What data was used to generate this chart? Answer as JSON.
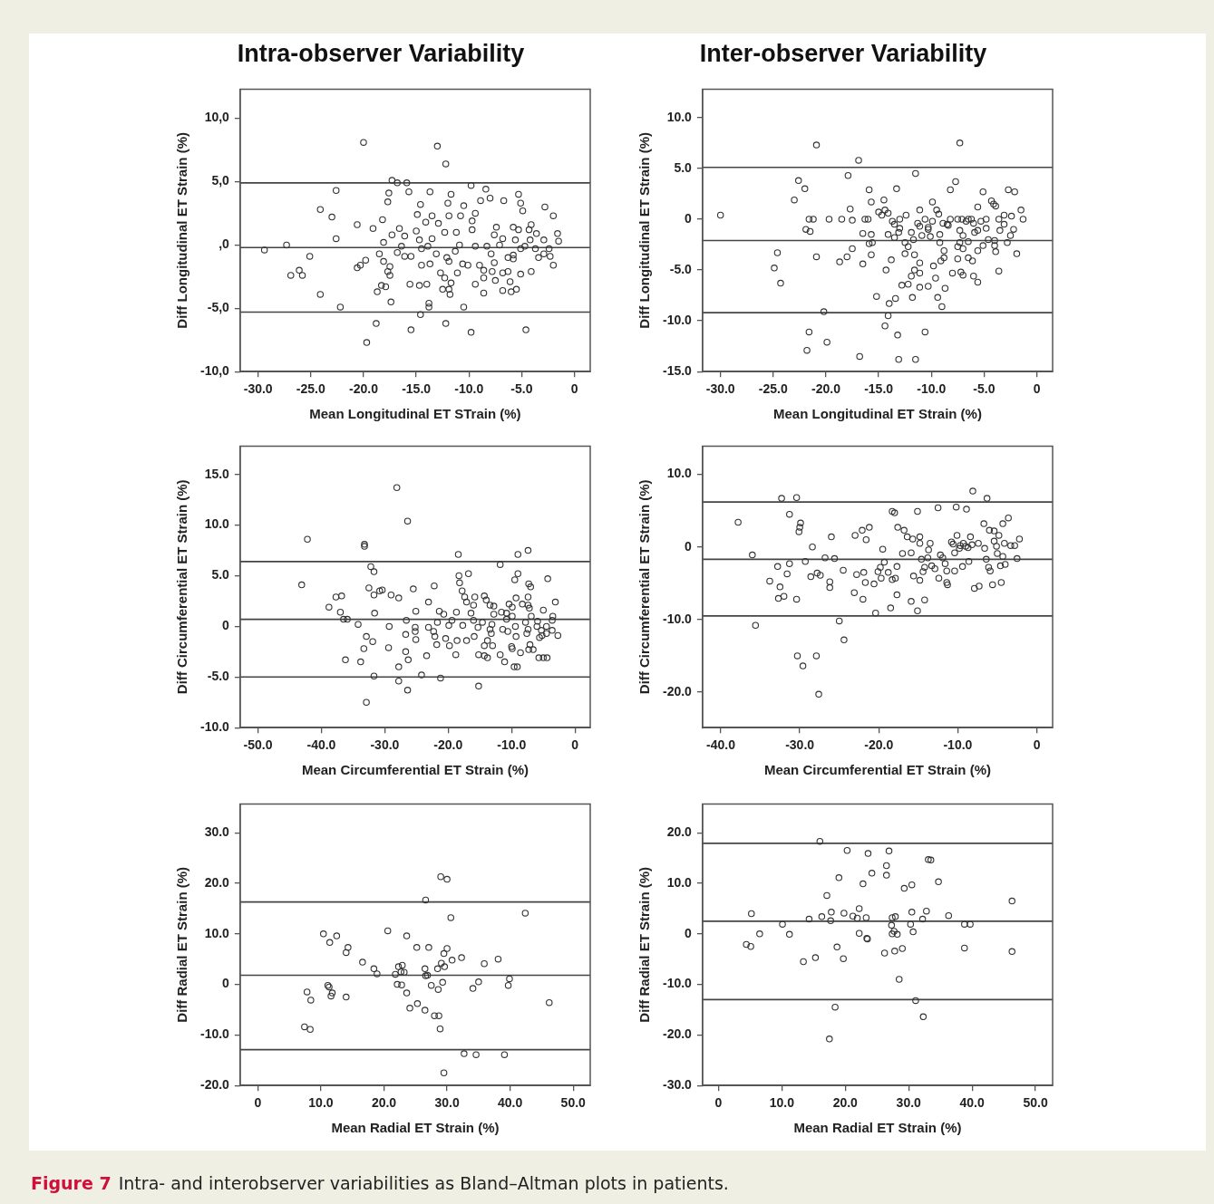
{
  "chart_data": [
    {
      "type": "scatter",
      "title": "Intra-observer Variability",
      "xlabel": "Mean Longitudinal ET STrain (%)",
      "ylabel": "Diff Longitudinal ET Strain (%)",
      "marker": "circle",
      "color": "#333333",
      "legend": false,
      "grid": false,
      "xlim": [
        -31.7,
        1.5
      ],
      "ylim": [
        -10,
        12.3
      ],
      "xticks": [
        {
          "value": -30,
          "label": "-30.0"
        },
        {
          "value": -25,
          "label": "-25.0"
        },
        {
          "value": -20,
          "label": "-20.0"
        },
        {
          "value": -15,
          "label": "-15.0"
        },
        {
          "value": -10,
          "label": "-10.0"
        },
        {
          "value": -5,
          "label": "-5.0"
        },
        {
          "value": 0,
          "label": "0"
        }
      ],
      "yticks": [
        {
          "value": -10,
          "label": "-10,0"
        },
        {
          "value": -5,
          "label": "-5,0"
        },
        {
          "value": 0,
          "label": ",0"
        },
        {
          "value": 5,
          "label": "5,0"
        },
        {
          "value": 10,
          "label": "10,0"
        }
      ],
      "ref_lines": [
        {
          "axis": "y",
          "value": 4.9
        },
        {
          "axis": "y",
          "value": -0.2
        },
        {
          "axis": "y",
          "value": -5.3
        }
      ],
      "annotations": [
        "Figure 7",
        "Intra- and interobserver variabilities as Bland–Altman plots in patients."
      ],
      "x": [
        -20.0,
        -13.0,
        -12.2,
        -17.3,
        -16.8,
        -15.9,
        -9.8,
        -22.6,
        -17.6,
        -15.7,
        -13.7,
        -11.7,
        -8.4,
        -5.3,
        -17.7,
        -14.6,
        -12.0,
        -10.5,
        -8.9,
        -8.0,
        -6.7,
        -5.1,
        -4.9,
        -2.8,
        -24.1,
        -23.0,
        -14.9,
        -13.5,
        -11.9,
        -10.8,
        -9.4,
        -2.0,
        -18.2,
        -14.1,
        -12.9,
        -9.7,
        -20.6,
        -19.1,
        -16.6,
        -7.4,
        -5.8,
        -4.1,
        -15.0,
        -12.3,
        -11.2,
        -9.7,
        -5.3,
        -4.3,
        -1.6,
        -22.6,
        -17.3,
        -16.1,
        -7.6,
        -3.6,
        -18.1,
        -14.7,
        -13.5,
        -6.8,
        -5.6,
        -4.2,
        -2.9,
        -1.5,
        -27.3,
        -10.9,
        -7.1,
        -9.4,
        -4.7,
        -29.4,
        -16.4,
        -13.9,
        -14.5,
        -8.3,
        -5.1,
        -3.7,
        -2.4,
        -19.8,
        -25.1,
        -18.5,
        -16.8,
        -16.1,
        -15.5,
        -13.1,
        -12.1,
        -11.3,
        -7.9,
        -6.3,
        -5.8,
        -2.9,
        -2.3,
        -20.3,
        -20.6,
        -18.1,
        -17.5,
        -14.5,
        -13.7,
        -11.9,
        -10.6,
        -10.1,
        -9.0,
        -7.6,
        -5.8,
        -3.4,
        -2.0,
        -26.9,
        -25.8,
        -26.1,
        -17.7,
        -17.5,
        -12.7,
        -12.3,
        -11.1,
        -8.6,
        -7.8,
        -6.8,
        -6.3,
        -5.1,
        -4.1,
        -18.3,
        -17.9,
        -15.6,
        -14.7,
        -14.0,
        -11.7,
        -9.4,
        -8.6,
        -7.5,
        -6.1,
        -18.7,
        -12.5,
        -11.9,
        -11.8,
        -8.6,
        -6.8,
        -6.0,
        -5.5,
        -24.1,
        -17.4,
        -13.8,
        -13.8,
        -22.2,
        -10.5,
        -14.6,
        -18.8,
        -12.2,
        -15.5,
        -4.6,
        -9.8,
        -19.7
      ],
      "values": [
        8.1,
        7.8,
        6.4,
        5.1,
        4.9,
        4.9,
        4.7,
        4.3,
        4.1,
        4.2,
        4.2,
        4.0,
        4.4,
        4.0,
        3.4,
        3.2,
        3.3,
        3.1,
        3.5,
        3.7,
        3.5,
        3.3,
        2.7,
        3.0,
        2.8,
        2.2,
        2.4,
        2.3,
        2.3,
        2.3,
        2.5,
        2.3,
        2.0,
        1.8,
        1.7,
        1.9,
        1.6,
        1.3,
        1.3,
        1.4,
        1.4,
        1.6,
        1.1,
        1.0,
        1.0,
        1.2,
        1.2,
        1.2,
        0.9,
        0.5,
        0.8,
        0.7,
        0.8,
        0.9,
        0.2,
        0.4,
        0.5,
        0.5,
        0.4,
        0.4,
        0.4,
        0.3,
        0.0,
        0.0,
        0.0,
        -0.1,
        -0.1,
        -0.4,
        -0.1,
        -0.1,
        -0.3,
        -0.1,
        -0.3,
        -0.3,
        -0.3,
        -1.2,
        -0.9,
        -0.7,
        -0.6,
        -0.9,
        -0.9,
        -0.7,
        -1.0,
        -0.5,
        -0.7,
        -1.0,
        -0.8,
        -0.7,
        -0.9,
        -1.6,
        -1.8,
        -1.3,
        -1.7,
        -1.6,
        -1.5,
        -1.3,
        -1.5,
        -1.6,
        -1.6,
        -1.4,
        -1.1,
        -1.0,
        -1.6,
        -2.4,
        -2.4,
        -2.0,
        -2.1,
        -2.4,
        -2.2,
        -2.6,
        -2.2,
        -2.0,
        -2.1,
        -2.2,
        -2.1,
        -2.3,
        -2.1,
        -3.2,
        -3.3,
        -3.1,
        -3.2,
        -3.1,
        -3.0,
        -3.1,
        -2.6,
        -2.8,
        -2.9,
        -3.7,
        -3.5,
        -3.5,
        -3.9,
        -3.8,
        -3.6,
        -3.7,
        -3.5,
        -3.9,
        -4.5,
        -4.6,
        -4.9,
        -4.9,
        -4.9,
        -5.5,
        -6.2,
        -6.2,
        -6.7,
        -6.7,
        -6.9,
        -7.7
      ]
    },
    {
      "type": "scatter",
      "title": "Inter-observer Variability",
      "xlabel": "Mean Longitudinal ET Strain (%)",
      "ylabel": "Diff Longitudinal ET Strain (%)",
      "marker": "circle",
      "color": "#333333",
      "legend": false,
      "grid": false,
      "xlim": [
        -31.7,
        1.5
      ],
      "ylim": [
        -15,
        12.8
      ],
      "xticks": [
        {
          "value": -30,
          "label": "-30.0"
        },
        {
          "value": -25,
          "label": "-25.0"
        },
        {
          "value": -20,
          "label": "-20.0"
        },
        {
          "value": -15,
          "label": "-15.0"
        },
        {
          "value": -10,
          "label": "-10.0"
        },
        {
          "value": -5,
          "label": "-5.0"
        },
        {
          "value": 0,
          "label": "0"
        }
      ],
      "yticks": [
        {
          "value": -15,
          "label": "-15.0"
        },
        {
          "value": -10,
          "label": "-10.0"
        },
        {
          "value": -5,
          "label": "-5.0"
        },
        {
          "value": 0,
          "label": "0"
        },
        {
          "value": 5,
          "label": "5.0"
        },
        {
          "value": 10,
          "label": "10.0"
        }
      ],
      "ref_lines": [
        {
          "axis": "y",
          "value": 5.1
        },
        {
          "axis": "y",
          "value": -2.1
        },
        {
          "axis": "y",
          "value": -9.2
        }
      ],
      "x": [
        -30.0,
        -20.9,
        -7.3,
        -16.9,
        -11.5,
        -17.9,
        -22.6,
        -7.7,
        -22.0,
        -13.3,
        -15.9,
        -8.2,
        -2.7,
        -2.1,
        -5.1,
        -23.0,
        -14.5,
        -15.7,
        -9.9,
        -4.3,
        -4.1,
        -3.9,
        -5.6,
        -17.7,
        -11.1,
        -9.5,
        -1.5,
        -15.0,
        -14.4,
        -14.1,
        -12.4,
        -14.7,
        -9.3,
        -3.1,
        -2.4,
        -21.6,
        -21.2,
        -19.7,
        -18.5,
        -17.5,
        -16.3,
        -16.0,
        -13.0,
        -10.6,
        -8.2,
        -7.5,
        -7.1,
        -6.5,
        -6.2,
        -4.8,
        -3.6,
        -1.3,
        -5.3,
        -13.7,
        -9.9,
        -8.9,
        -6.7,
        -3.1,
        -6.0,
        -13.5,
        -11.3,
        -10.3,
        -11.1,
        -8.5,
        -13.0,
        -4.8,
        -2.2,
        -21.9,
        -21.5,
        -10.3,
        -8.4,
        -11.9,
        -16.5,
        -13.1,
        -5.9,
        -5.6,
        -3.5,
        -7.3,
        -2.5,
        -14.1,
        -15.7,
        -11.7,
        -9.2,
        -10.1,
        -10.9,
        -7.0,
        -13.5,
        -4.6,
        -4.0,
        -6.5,
        -15.6,
        -9.2,
        -7.3,
        -12.5,
        -2.8,
        -15.9,
        -12.2,
        -7.5,
        -5.1,
        -4.0,
        -17.5,
        -7.0,
        -8.8,
        -5.6,
        -20.9,
        -24.6,
        -18.0,
        -15.7,
        -11.6,
        -12.5,
        -3.9,
        -1.9,
        -7.5,
        -6.5,
        -8.8,
        -13.8,
        -9.1,
        -6.1,
        -18.7,
        -11.1,
        -16.5,
        -9.8,
        -24.9,
        -14.3,
        -11.6,
        -3.6,
        -8.0,
        -7.2,
        -7.0,
        -11.9,
        -11.1,
        -6.0,
        -9.6,
        -5.6,
        -24.3,
        -12.2,
        -12.8,
        -10.3,
        -11.1,
        -8.7,
        -15.2,
        -11.8,
        -13.4,
        -9.4,
        -9.0,
        -14.0,
        -20.2,
        -14.1,
        -14.4,
        -21.6,
        -10.6,
        -13.2,
        -19.9,
        -21.8,
        -16.8,
        -13.1,
        -11.5
      ],
      "values": [
        0.4,
        7.3,
        7.5,
        5.8,
        4.5,
        4.3,
        3.8,
        3.7,
        3.0,
        3.0,
        2.9,
        2.9,
        2.9,
        2.7,
        2.7,
        1.9,
        1.9,
        1.7,
        1.7,
        1.8,
        1.5,
        1.3,
        1.2,
        1.0,
        0.9,
        0.9,
        0.9,
        0.7,
        0.9,
        0.6,
        0.4,
        0.4,
        0.5,
        0.4,
        0.3,
        0,
        0,
        0,
        0,
        -0.1,
        0,
        0,
        0,
        0,
        0,
        0,
        0,
        0,
        0,
        0,
        0,
        0,
        -0.2,
        -0.2,
        -0.2,
        -0.4,
        -0.2,
        -0.5,
        -0.4,
        -0.5,
        -0.4,
        -0.8,
        -0.7,
        -0.5,
        -0.9,
        -0.9,
        -1.0,
        -1.0,
        -1.2,
        -1.0,
        -0.6,
        -1.3,
        -1.4,
        -1.3,
        -1.3,
        -1.1,
        -1.1,
        -1.1,
        -1.6,
        -1.5,
        -1.5,
        -2.0,
        -1.5,
        -1.7,
        -1.6,
        -1.6,
        -1.8,
        -2.0,
        -2.1,
        -2.2,
        -2.3,
        -2.3,
        -2.3,
        -2.3,
        -2.3,
        -2.4,
        -2.7,
        -2.7,
        -2.6,
        -2.6,
        -2.9,
        -2.9,
        -3.1,
        -3.1,
        -3.7,
        -3.3,
        -3.7,
        -3.5,
        -3.5,
        -3.4,
        -3.2,
        -3.4,
        -3.9,
        -3.8,
        -3.8,
        -4.0,
        -4.1,
        -4.1,
        -4.2,
        -4.3,
        -4.4,
        -4.6,
        -4.8,
        -5.0,
        -5.0,
        -5.1,
        -5.3,
        -5.2,
        -5.5,
        -5.6,
        -5.3,
        -5.6,
        -5.8,
        -6.2,
        -6.3,
        -6.4,
        -6.5,
        -6.6,
        -6.7,
        -6.8,
        -7.6,
        -7.7,
        -7.8,
        -7.7,
        -8.6,
        -8.3,
        -9.1,
        -9.5,
        -10.5,
        -11.1,
        -11.1,
        -11.4,
        -12.1,
        -12.9,
        -13.5,
        -13.8,
        -13.8
      ]
    },
    {
      "type": "scatter",
      "xlabel": "Mean Circumferential ET Strain (%)",
      "ylabel": "Diff Circumferential ET Strain (%)",
      "marker": "circle",
      "color": "#333333",
      "legend": false,
      "grid": false,
      "xlim": [
        -52.8,
        2.4
      ],
      "ylim": [
        -10,
        17.8
      ],
      "xticks": [
        {
          "value": -50,
          "label": "-50.0"
        },
        {
          "value": -40,
          "label": "-40.0"
        },
        {
          "value": -30,
          "label": "-30.0"
        },
        {
          "value": -20,
          "label": "-20.0"
        },
        {
          "value": -10,
          "label": "-10.0"
        },
        {
          "value": 0,
          "label": "0"
        }
      ],
      "yticks": [
        {
          "value": -10,
          "label": "-10.0"
        },
        {
          "value": -5,
          "label": "-5.0"
        },
        {
          "value": 0,
          "label": "0"
        },
        {
          "value": 5,
          "label": "5.0"
        },
        {
          "value": 10,
          "label": "10.0"
        },
        {
          "value": 15,
          "label": "15.0"
        }
      ],
      "ref_lines": [
        {
          "axis": "y",
          "value": 6.4
        },
        {
          "axis": "y",
          "value": 0.7
        },
        {
          "axis": "y",
          "value": -5.0
        }
      ],
      "x": [
        -28.1,
        -26.4,
        -42.2,
        -33.2,
        -33.2,
        -18.4,
        -9.0,
        -7.4,
        -11.8,
        -32.2,
        -31.7,
        -16.8,
        -9.0,
        -18.3,
        -4.3,
        -9.5,
        -18.2,
        -43.1,
        -7.3,
        -7.0,
        -32.5,
        -22.2,
        -30.8,
        -30.4,
        -25.5,
        -17.8,
        -37.7,
        -36.8,
        -29.0,
        -27.8,
        -31.7,
        -17.4,
        -15.8,
        -14.3,
        -7.4,
        -9.3,
        -3.1,
        -23.1,
        -17.1,
        -14.0,
        -10.4,
        -8.3,
        -7.4,
        -38.8,
        -16.0,
        -13.4,
        -12.8,
        -9.9,
        -7.2,
        -25.1,
        -21.4,
        -18.7,
        -11.6,
        -10.8,
        -5.0,
        -37.0,
        -12.8,
        -31.6,
        -20.7,
        -16.4,
        -9.9,
        -6.9,
        -3.5,
        -36.5,
        -35.9,
        -26.6,
        -21.7,
        -19.4,
        -16.0,
        -14.6,
        -10.8,
        -5.9,
        -3.6,
        -34.2,
        -17.7,
        -13.1,
        -7.8,
        -29.3,
        -25.2,
        -19.9,
        -15.3,
        -6.0,
        -4.5,
        -23.1,
        -13.4,
        -11.4,
        -9.4,
        -7.4,
        -5.3,
        -25.2,
        -22.3,
        -10.6,
        -13.2,
        -5.2,
        -3.6,
        -2.7,
        -32.9,
        -26.7,
        -22.1,
        -15.9,
        -9.3,
        -7.6,
        -4.5,
        -25.1,
        -20.4,
        -18.6,
        -17.1,
        -13.8,
        -5.6,
        -31.9,
        -21.8,
        -19.8,
        -14.3,
        -13.0,
        -7.1,
        -29.4,
        -33.3,
        -10.0,
        -9.9,
        -7.3,
        -6.6,
        -26.7,
        -18.8,
        -11.8,
        -14.3,
        -15.2,
        -8.6,
        -23.4,
        -13.8,
        -5.7,
        -4.4,
        -5.0,
        -36.2,
        -26.3,
        -33.8,
        -11.1,
        -27.8,
        -9.6,
        -9.1,
        -31.7,
        -24.2,
        -21.2,
        -27.8,
        -15.2,
        -26.4,
        -32.9
      ],
      "values": [
        13.7,
        10.4,
        8.6,
        8.1,
        7.9,
        7.1,
        7.1,
        7.5,
        6.1,
        5.9,
        5.4,
        5.2,
        5.2,
        5.0,
        4.7,
        4.6,
        4.3,
        4.1,
        4.2,
        3.9,
        3.8,
        4.0,
        3.5,
        3.6,
        3.7,
        3.5,
        2.9,
        3.0,
        3.1,
        2.8,
        3.1,
        2.9,
        2.9,
        3.0,
        2.9,
        2.8,
        2.4,
        2.4,
        2.4,
        2.6,
        2.2,
        2.2,
        2.1,
        1.9,
        2.1,
        2.1,
        2.0,
        1.9,
        1.8,
        1.5,
        1.5,
        1.4,
        1.4,
        1.3,
        1.6,
        1.4,
        1.2,
        1.3,
        1.2,
        1.3,
        1.0,
        1.0,
        1.0,
        0.7,
        0.7,
        0.6,
        0.4,
        0.6,
        0.6,
        0.4,
        0.7,
        0.5,
        0.6,
        0.2,
        0.1,
        0.2,
        0.4,
        0.0,
        -0.1,
        0.1,
        -0.1,
        0.0,
        0.0,
        -0.1,
        -0.3,
        -0.3,
        0.0,
        -0.3,
        -0.4,
        -0.5,
        -0.5,
        -0.5,
        -0.7,
        -0.9,
        -0.4,
        -0.9,
        -1.0,
        -0.8,
        -1.0,
        -1.0,
        -1.0,
        -0.7,
        -0.7,
        -1.3,
        -1.2,
        -1.4,
        -1.4,
        -1.4,
        -1.1,
        -1.5,
        -1.8,
        -1.9,
        -1.9,
        -1.9,
        -1.8,
        -2.1,
        -2.2,
        -2.0,
        -2.2,
        -2.3,
        -2.3,
        -2.5,
        -2.8,
        -2.8,
        -2.9,
        -2.8,
        -2.6,
        -2.9,
        -3.1,
        -3.1,
        -3.1,
        -3.1,
        -3.3,
        -3.3,
        -3.5,
        -3.5,
        -4.0,
        -4.0,
        -4.0,
        -4.9,
        -4.8,
        -5.1,
        -5.4,
        -5.9,
        -6.3,
        -7.5
      ]
    },
    {
      "type": "scatter",
      "xlabel": "Mean Circumferential ET Strain (%)",
      "ylabel": "Diff Circumferential ET Strain (%)",
      "marker": "circle",
      "color": "#333333",
      "legend": false,
      "grid": false,
      "xlim": [
        -42.3,
        2.0
      ],
      "ylim": [
        -24.9,
        13.9
      ],
      "xticks": [
        {
          "value": -40,
          "label": "-40.0"
        },
        {
          "value": -30,
          "label": "-30.0"
        },
        {
          "value": -20,
          "label": "-20.0"
        },
        {
          "value": -10,
          "label": "-10.0"
        },
        {
          "value": 0,
          "label": "0"
        }
      ],
      "yticks": [
        {
          "value": -20,
          "label": "-20.0"
        },
        {
          "value": -10,
          "label": "-10.0"
        },
        {
          "value": 0,
          "label": "0"
        },
        {
          "value": 10,
          "label": "10.0"
        }
      ],
      "ref_lines": [
        {
          "axis": "y",
          "value": 6.2
        },
        {
          "axis": "y",
          "value": -1.7
        },
        {
          "axis": "y",
          "value": -9.5
        }
      ],
      "x": [
        -37.8,
        -32.3,
        -30.4,
        -31.3,
        -29.9,
        -30.0,
        -30.1,
        -36.0,
        -35.6,
        -33.8,
        -32.8,
        -32.5,
        -32.7,
        -32.0,
        -31.6,
        -31.3,
        -30.4,
        -29.3,
        -28.4,
        -28.6,
        -27.8,
        -27.4,
        -30.3,
        -29.6,
        -27.9,
        -27.6,
        -26.8,
        -26.0,
        -26.2,
        -26.2,
        -25.6,
        -25.0,
        -24.5,
        -24.4,
        -23.1,
        -23.0,
        -22.8,
        -22.1,
        -21.9,
        -22.0,
        -21.6,
        -21.7,
        -21.2,
        -20.6,
        -20.4,
        -20.1,
        -19.8,
        -19.7,
        -19.5,
        -19.3,
        -18.8,
        -18.5,
        -18.3,
        -18.0,
        -18.3,
        -17.9,
        -17.7,
        -17.7,
        -17.6,
        -17.0,
        -16.8,
        -16.4,
        -15.9,
        -15.9,
        -15.7,
        -15.6,
        -15.1,
        -15.1,
        -14.8,
        -14.8,
        -14.8,
        -14.6,
        -14.4,
        -14.2,
        -14.2,
        -13.8,
        -13.7,
        -13.5,
        -13.3,
        -12.9,
        -12.5,
        -12.4,
        -12.2,
        -11.9,
        -11.6,
        -11.4,
        -11.4,
        -11.3,
        -10.8,
        -10.6,
        -10.4,
        -10.4,
        -10.2,
        -10.1,
        -9.8,
        -9.7,
        -9.4,
        -9.3,
        -9.0,
        -8.9,
        -8.7,
        -8.6,
        -8.4,
        -8.2,
        -8.1,
        -7.9,
        -7.3,
        -7.4,
        -6.7,
        -6.6,
        -6.3,
        -6.4,
        -6.1,
        -6.0,
        -5.9,
        -5.6,
        -5.4,
        -5.4,
        -5.1,
        -5.0,
        -4.8,
        -4.6,
        -4.5,
        -4.3,
        -4.3,
        -4.1,
        -4.0,
        -3.6,
        -3.3,
        -2.8,
        -2.5,
        -2.2
      ],
      "values": [
        3.4,
        6.7,
        6.8,
        4.5,
        3.3,
        2.7,
        2.1,
        -1.1,
        -10.8,
        -4.7,
        -2.7,
        -5.5,
        -7.1,
        -6.8,
        -3.7,
        -2.3,
        -7.2,
        -2.0,
        0.0,
        -4.1,
        -3.6,
        -3.9,
        -15.0,
        -16.4,
        -15.0,
        -20.3,
        -1.5,
        1.4,
        -4.8,
        -5.6,
        -1.6,
        -10.2,
        -3.2,
        -12.8,
        -6.3,
        1.6,
        -3.8,
        2.3,
        -3.5,
        -7.2,
        1.0,
        -4.9,
        2.7,
        -5.1,
        -9.1,
        -3.4,
        -2.8,
        -4.3,
        -0.3,
        -2.1,
        -3.5,
        -8.4,
        4.9,
        4.7,
        -4.5,
        -4.3,
        -2.7,
        -6.6,
        2.7,
        -0.9,
        2.3,
        1.4,
        -0.8,
        -7.5,
        1.1,
        -4.0,
        4.9,
        -8.8,
        1.4,
        0.5,
        -4.6,
        -1.7,
        -3.4,
        -7.3,
        -2.8,
        -1.5,
        -0.4,
        0.5,
        -2.6,
        -3.0,
        5.4,
        -4.3,
        -1.1,
        -1.5,
        -2.3,
        -3.3,
        -4.9,
        -5.2,
        0.7,
        0.4,
        -0.8,
        -3.3,
        5.5,
        1.6,
        -0.2,
        0.2,
        -2.7,
        0.5,
        0.1,
        5.2,
        -0.1,
        -2.0,
        1.4,
        0.3,
        7.7,
        -5.7,
        -5.4,
        0.5,
        3.2,
        -0.2,
        6.7,
        -1.7,
        -2.8,
        2.3,
        -3.3,
        -5.2,
        2.2,
        0.8,
        0.1,
        -0.9,
        1.6,
        -2.6,
        -4.9,
        3.2,
        -1.3,
        0.5,
        -2.4,
        4.0,
        0.2,
        0.2,
        -1.6,
        1.1
      ]
    },
    {
      "type": "scatter",
      "xlabel": "Mean Radial ET Strain (%)",
      "ylabel": "Diff Radial ET Strain (%)",
      "marker": "circle",
      "color": "#333333",
      "legend": false,
      "grid": false,
      "xlim": [
        -2.8,
        52.7
      ],
      "ylim": [
        -20,
        35.7
      ],
      "xticks": [
        {
          "value": 0,
          "label": "0"
        },
        {
          "value": 10,
          "label": "10.0"
        },
        {
          "value": 20,
          "label": "20.0"
        },
        {
          "value": 30,
          "label": "30.0"
        },
        {
          "value": 40,
          "label": "40.0"
        },
        {
          "value": 50,
          "label": "50.0"
        }
      ],
      "yticks": [
        {
          "value": -20,
          "label": "-20.0"
        },
        {
          "value": -10,
          "label": "-10.0"
        },
        {
          "value": 0,
          "label": "0"
        },
        {
          "value": 10,
          "label": "10.0"
        },
        {
          "value": 20,
          "label": "20.0"
        },
        {
          "value": 30,
          "label": "30.0"
        }
      ],
      "ref_lines": [
        {
          "axis": "y",
          "value": 16.3
        },
        {
          "axis": "y",
          "value": 1.8
        },
        {
          "axis": "y",
          "value": -12.9
        }
      ],
      "x": [
        29.0,
        30.0,
        26.6,
        42.4,
        30.6,
        20.6,
        10.4,
        12.5,
        23.6,
        11.4,
        14.3,
        25.2,
        27.1,
        30.0,
        14.0,
        29.5,
        16.6,
        30.8,
        32.3,
        38.1,
        35.9,
        29.1,
        29.6,
        22.3,
        22.9,
        18.4,
        26.5,
        28.5,
        22.7,
        23.2,
        18.9,
        21.8,
        26.6,
        26.9,
        39.9,
        35.0,
        29.3,
        22.1,
        22.8,
        11.1,
        27.5,
        39.7,
        11.3,
        34.1,
        28.6,
        7.8,
        11.8,
        23.6,
        11.6,
        14.0,
        8.4,
        46.2,
        25.3,
        24.1,
        26.5,
        28.0,
        28.7,
        7.4,
        8.3,
        28.9,
        32.7,
        34.6,
        39.1,
        29.5
      ],
      "values": [
        21.3,
        20.8,
        16.7,
        14.1,
        13.2,
        10.6,
        10.0,
        9.6,
        9.6,
        8.3,
        7.3,
        7.3,
        7.3,
        7.1,
        6.3,
        6.1,
        4.4,
        4.8,
        5.3,
        5.0,
        4.1,
        4.2,
        3.5,
        3.5,
        3.8,
        3.1,
        3.1,
        3.1,
        2.5,
        2.4,
        2.1,
        2.0,
        1.7,
        1.8,
        1.1,
        0.5,
        0.4,
        0,
        -0.1,
        -0.2,
        -0.2,
        -0.2,
        -0.5,
        -0.8,
        -1.0,
        -1.5,
        -1.7,
        -1.7,
        -2.3,
        -2.5,
        -3.1,
        -3.6,
        -3.8,
        -4.7,
        -5.1,
        -6.2,
        -6.2,
        -8.4,
        -8.9,
        -8.8,
        -13.7,
        -13.9,
        -13.9,
        -17.5
      ]
    },
    {
      "type": "scatter",
      "xlabel": "Mean Radial ET Strain (%)",
      "ylabel": "Diff Radial ET Strain (%)",
      "marker": "circle",
      "color": "#333333",
      "legend": false,
      "grid": false,
      "xlim": [
        -2.5,
        52.7
      ],
      "ylim": [
        -30,
        25.7
      ],
      "xticks": [
        {
          "value": 0,
          "label": "0"
        },
        {
          "value": 10,
          "label": "10.0"
        },
        {
          "value": 20,
          "label": "20.0"
        },
        {
          "value": 30,
          "label": "30.0"
        },
        {
          "value": 40,
          "label": "40.0"
        },
        {
          "value": 50,
          "label": "50.0"
        }
      ],
      "yticks": [
        {
          "value": -30,
          "label": "-30.0"
        },
        {
          "value": -20,
          "label": "-20.0"
        },
        {
          "value": -10,
          "label": "-10.0"
        },
        {
          "value": 0,
          "label": "0"
        },
        {
          "value": 10,
          "label": "10.0"
        },
        {
          "value": 20,
          "label": "20.0"
        }
      ],
      "ref_lines": [
        {
          "axis": "y",
          "value": 17.9
        },
        {
          "axis": "y",
          "value": 2.5
        },
        {
          "axis": "y",
          "value": -13.0
        }
      ],
      "x": [
        16.0,
        20.3,
        23.6,
        26.9,
        33.1,
        33.5,
        26.5,
        24.2,
        26.5,
        19.0,
        34.7,
        22.8,
        30.5,
        29.3,
        17.1,
        46.3,
        22.2,
        32.8,
        17.8,
        30.5,
        5.2,
        19.8,
        36.3,
        21.2,
        16.3,
        27.9,
        27.4,
        23.3,
        21.9,
        14.3,
        32.2,
        17.7,
        10.1,
        38.8,
        39.7,
        30.3,
        27.3,
        30.7,
        27.7,
        22.2,
        27.4,
        28.2,
        6.5,
        11.2,
        23.4,
        23.5,
        4.4,
        5.1,
        18.7,
        29.0,
        38.8,
        26.2,
        27.8,
        46.3,
        15.3,
        19.7,
        13.4,
        28.5,
        31.1,
        18.4,
        32.3,
        17.5
      ],
      "values": [
        18.3,
        16.5,
        15.9,
        16.4,
        14.7,
        14.6,
        13.5,
        12.0,
        11.6,
        11.1,
        10.3,
        9.9,
        9.7,
        9.0,
        7.6,
        6.5,
        5.0,
        4.5,
        4.3,
        4.3,
        4.0,
        4.1,
        3.6,
        3.5,
        3.4,
        3.4,
        3.2,
        3.2,
        3.1,
        2.9,
        2.9,
        2.6,
        1.9,
        1.9,
        1.9,
        1.9,
        1.7,
        0.4,
        0.5,
        0.1,
        0,
        -0.1,
        0,
        -0.1,
        -0.9,
        -1.0,
        -2.1,
        -2.5,
        -2.6,
        -2.9,
        -2.8,
        -3.8,
        -3.4,
        -3.5,
        -4.7,
        -4.9,
        -5.5,
        -9.0,
        -13.2,
        -14.5,
        -16.4,
        -20.8
      ]
    }
  ]
}
